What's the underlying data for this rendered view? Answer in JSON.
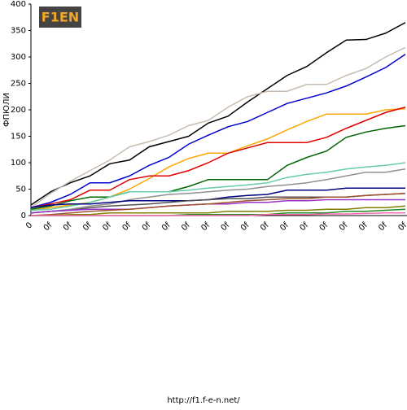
{
  "logo": "F1EN",
  "footer": "http://f1.f-e-n.net/",
  "chart_data": {
    "type": "line",
    "y_label": "ФПЮЛИ",
    "categories": [
      "0",
      "0f",
      "0f",
      "0f",
      "0f",
      "0f",
      "0f",
      "0f",
      "0f",
      "0f",
      "0f",
      "0f",
      "0f",
      "0f",
      "0f",
      "0f",
      "0f",
      "0f",
      "0f",
      "0f"
    ],
    "ylim": [
      0,
      400
    ],
    "yticks": [
      0,
      50,
      100,
      150,
      200,
      250,
      300,
      350,
      400
    ],
    "grid": false,
    "series": [
      {
        "color": "#000000",
        "values": [
          20,
          45,
          62,
          75,
          98,
          105,
          130,
          140,
          150,
          175,
          188,
          215,
          240,
          265,
          282,
          308,
          332,
          333,
          345,
          365
        ]
      },
      {
        "color": "#c8bcb0",
        "values": [
          15,
          42,
          65,
          85,
          105,
          130,
          140,
          152,
          170,
          180,
          205,
          225,
          235,
          235,
          248,
          248,
          265,
          278,
          300,
          318
        ]
      },
      {
        "color": "#0000cc",
        "values": [
          15,
          25,
          40,
          62,
          62,
          75,
          95,
          110,
          135,
          152,
          168,
          178,
          195,
          212,
          222,
          232,
          245,
          262,
          280,
          305
        ]
      },
      {
        "color": "#ffa500",
        "values": [
          10,
          15,
          20,
          25,
          35,
          50,
          70,
          92,
          108,
          118,
          118,
          132,
          145,
          162,
          178,
          192,
          192,
          192,
          200,
          202
        ]
      },
      {
        "color": "#e00000",
        "values": [
          15,
          22,
          30,
          48,
          48,
          68,
          75,
          75,
          85,
          100,
          118,
          128,
          138,
          138,
          138,
          148,
          165,
          180,
          195,
          205
        ]
      },
      {
        "color": "#006400",
        "values": [
          12,
          18,
          28,
          35,
          35,
          45,
          45,
          45,
          55,
          68,
          68,
          68,
          68,
          95,
          110,
          122,
          148,
          158,
          165,
          170
        ]
      },
      {
        "color": "#66cdaa",
        "values": [
          10,
          12,
          18,
          25,
          35,
          45,
          45,
          45,
          48,
          52,
          55,
          58,
          62,
          72,
          78,
          82,
          88,
          92,
          95,
          100
        ]
      },
      {
        "color": "#909090",
        "values": [
          5,
          8,
          12,
          18,
          22,
          30,
          35,
          40,
          42,
          45,
          48,
          50,
          55,
          58,
          62,
          68,
          75,
          82,
          82,
          88
        ]
      },
      {
        "color": "#000080",
        "values": [
          15,
          20,
          22,
          22,
          25,
          28,
          28,
          28,
          28,
          30,
          35,
          38,
          40,
          48,
          48,
          48,
          52,
          52,
          52,
          52
        ]
      },
      {
        "color": "#505050",
        "values": [
          5,
          8,
          10,
          15,
          18,
          20,
          22,
          25,
          28,
          30,
          32,
          32,
          35,
          35,
          35,
          35,
          35,
          38,
          40,
          42
        ]
      },
      {
        "color": "#9932cc",
        "values": [
          5,
          8,
          10,
          12,
          12,
          12,
          15,
          18,
          20,
          22,
          22,
          25,
          25,
          28,
          28,
          30,
          30,
          30,
          30,
          30
        ]
      },
      {
        "color": "#a0522d",
        "values": [
          0,
          2,
          5,
          8,
          10,
          12,
          15,
          18,
          20,
          22,
          25,
          28,
          30,
          32,
          32,
          35,
          35,
          38,
          40,
          42
        ]
      },
      {
        "color": "#808000",
        "values": [
          0,
          0,
          2,
          2,
          5,
          5,
          5,
          5,
          5,
          5,
          8,
          8,
          8,
          10,
          10,
          12,
          12,
          15,
          15,
          18
        ]
      },
      {
        "color": "#228b22",
        "values": [
          0,
          0,
          0,
          0,
          0,
          0,
          0,
          0,
          2,
          2,
          2,
          2,
          2,
          5,
          5,
          5,
          8,
          8,
          10,
          12
        ]
      },
      {
        "color": "#ff69b4",
        "values": [
          0,
          0,
          0,
          0,
          0,
          0,
          0,
          0,
          0,
          0,
          0,
          0,
          2,
          2,
          2,
          3,
          3,
          4,
          5,
          5
        ]
      }
    ]
  }
}
